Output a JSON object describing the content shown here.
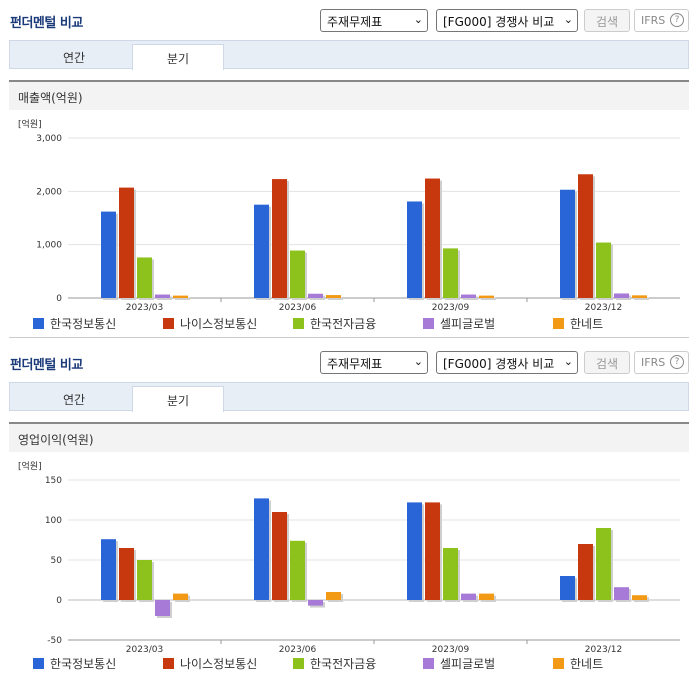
{
  "sections": [
    {
      "title": "펀더멘털 비교",
      "select1": "주재무제표",
      "select2": "[FG000] 경쟁사 비교",
      "search_label": "검색",
      "ifrs_label": "IFRS",
      "tabs": [
        "연간",
        "분기"
      ],
      "active_tab": "분기",
      "chart_title": "매출액(억원)"
    },
    {
      "title": "펀더멘털 비교",
      "select1": "주재무제표",
      "select2": "[FG000] 경쟁사 비교",
      "search_label": "검색",
      "ifrs_label": "IFRS",
      "tabs": [
        "연간",
        "분기"
      ],
      "active_tab": "분기",
      "chart_title": "영업이익(억원)"
    }
  ],
  "colors": [
    "#2a65d8",
    "#c8380e",
    "#8cc21b",
    "#a87ad8",
    "#f29a15"
  ],
  "chart_data": [
    {
      "type": "bar",
      "unit_label": "[억원]",
      "categories": [
        "2023/03",
        "2023/06",
        "2023/09",
        "2023/12"
      ],
      "ylim": [
        0,
        3000
      ],
      "yticks": [
        0,
        1000,
        2000,
        3000
      ],
      "ytick_labels": [
        "0",
        "1,000",
        "2,000",
        "3,000"
      ],
      "legend_position": "bottom",
      "series": [
        {
          "name": "한국정보통신",
          "values": [
            1620,
            1750,
            1810,
            2030
          ]
        },
        {
          "name": "나이스정보통신",
          "values": [
            2070,
            2230,
            2240,
            2320
          ]
        },
        {
          "name": "한국전자금융",
          "values": [
            760,
            890,
            930,
            1040
          ]
        },
        {
          "name": "셀피글로벌",
          "values": [
            65,
            80,
            65,
            85
          ]
        },
        {
          "name": "한네트",
          "values": [
            45,
            55,
            45,
            50
          ]
        }
      ]
    },
    {
      "type": "bar",
      "unit_label": "[억원]",
      "categories": [
        "2023/03",
        "2023/06",
        "2023/09",
        "2023/12"
      ],
      "ylim": [
        -50,
        150
      ],
      "yticks": [
        -50,
        0,
        50,
        100,
        150
      ],
      "ytick_labels": [
        "-50",
        "0",
        "50",
        "100",
        "150"
      ],
      "legend_position": "bottom",
      "series": [
        {
          "name": "한국정보통신",
          "values": [
            76,
            127,
            122,
            30
          ]
        },
        {
          "name": "나이스정보통신",
          "values": [
            65,
            110,
            122,
            70
          ]
        },
        {
          "name": "한국전자금융",
          "values": [
            50,
            74,
            65,
            90
          ]
        },
        {
          "name": "셀피글로벌",
          "values": [
            -20,
            -7,
            8,
            16
          ]
        },
        {
          "name": "한네트",
          "values": [
            8,
            10,
            8,
            6
          ]
        }
      ]
    }
  ]
}
